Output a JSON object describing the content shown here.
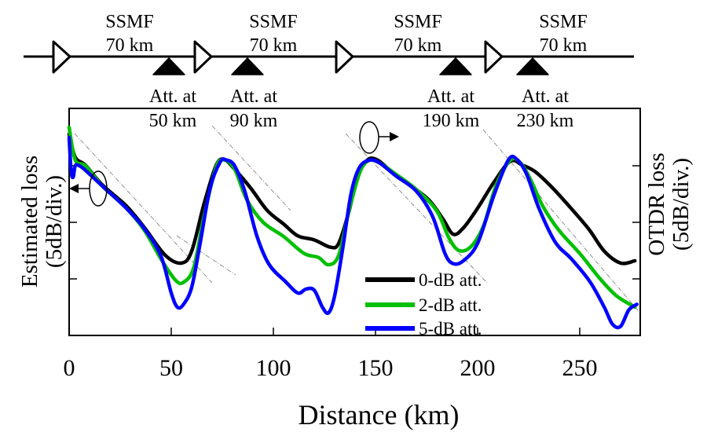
{
  "diagram": {
    "spans": [
      {
        "fiber": "SSMF",
        "length": "70 km"
      },
      {
        "fiber": "SSMF",
        "length": "70 km"
      },
      {
        "fiber": "SSMF",
        "length": "70 km"
      },
      {
        "fiber": "SSMF",
        "length": "70 km"
      }
    ],
    "attenuators": [
      {
        "line1": "Att. at",
        "line2": "50 km"
      },
      {
        "line1": "Att. at",
        "line2": "90 km"
      },
      {
        "line1": "Att. at",
        "line2": "190 km"
      },
      {
        "line1": "Att. at",
        "line2": "230 km"
      }
    ]
  },
  "chart_data": {
    "type": "line",
    "title": "",
    "xlabel": "Distance (km)",
    "ylabel_left": [
      "Estimated loss",
      "(5dB/div.)"
    ],
    "ylabel_right": [
      "OTDR loss",
      "(5dB/div.)"
    ],
    "xlim": [
      0,
      280
    ],
    "ylim": [
      0,
      4
    ],
    "y_unit": "divisions (5 dB/div.)",
    "xticks": [
      0,
      50,
      100,
      150,
      200,
      250
    ],
    "xtick_labels": [
      "0",
      "50",
      "100",
      "150",
      "200",
      "250"
    ],
    "yticks": [
      1,
      2,
      3
    ],
    "grid": false,
    "legend": {
      "placement": "bottom-center",
      "entries": [
        "0-dB att.",
        "2-dB att.",
        "5-dB att."
      ]
    },
    "annotations": {
      "left_axis_arrow": "points to left axis",
      "right_axis_arrow": "points to right axis"
    },
    "series": [
      {
        "name": "0-dB att.",
        "color": "#000000",
        "x": [
          0,
          3,
          8,
          16,
          28,
          37,
          47,
          55,
          60,
          66,
          72,
          76,
          81,
          89,
          97,
          105,
          112,
          120,
          128,
          132,
          137,
          141,
          146,
          151,
          158,
          166,
          176,
          183,
          188,
          193,
          200,
          208,
          216,
          222,
          228,
          235,
          242,
          254,
          262,
          270,
          277
        ],
        "y": [
          3.56,
          3.15,
          3.01,
          2.67,
          2.29,
          1.9,
          1.42,
          1.28,
          1.49,
          2.32,
          3.01,
          3.11,
          2.94,
          2.6,
          2.21,
          1.97,
          1.76,
          1.69,
          1.56,
          1.63,
          2.19,
          2.78,
          3.1,
          3.1,
          2.89,
          2.68,
          2.4,
          2.06,
          1.79,
          1.9,
          2.25,
          2.71,
          3.08,
          3.01,
          2.9,
          2.67,
          2.4,
          1.9,
          1.49,
          1.28,
          1.32
        ]
      },
      {
        "name": "2-dB att.",
        "color": "#00c000",
        "x": [
          0,
          3,
          8,
          16,
          28,
          37,
          45,
          52,
          56,
          61,
          66,
          72,
          76,
          81,
          87,
          95,
          105,
          115,
          122,
          127,
          132,
          137,
          142,
          146,
          151,
          160,
          170,
          180,
          186,
          191,
          197,
          203,
          209,
          216,
          221,
          226,
          232,
          240,
          250,
          260,
          268,
          277
        ],
        "y": [
          3.68,
          3.1,
          3.0,
          2.65,
          2.25,
          1.85,
          1.35,
          0.98,
          0.94,
          1.2,
          2.1,
          2.98,
          3.1,
          2.94,
          2.4,
          2.0,
          1.75,
          1.45,
          1.38,
          1.25,
          1.42,
          2.2,
          2.85,
          3.08,
          3.07,
          2.85,
          2.58,
          2.2,
          1.72,
          1.5,
          1.58,
          1.95,
          2.65,
          3.1,
          3.05,
          2.75,
          2.28,
          1.85,
          1.45,
          1.0,
          0.7,
          0.5
        ]
      },
      {
        "name": "5-dB att.",
        "color": "#0000ff",
        "x": [
          0,
          1,
          2,
          3,
          5,
          8,
          16,
          28,
          37,
          45,
          50,
          53,
          56,
          60,
          64,
          69,
          74,
          77,
          81,
          86,
          92,
          98,
          106,
          112,
          116,
          120,
          124,
          127,
          130,
          134,
          138,
          142,
          147,
          152,
          160,
          170,
          178,
          184,
          188,
          193,
          200,
          208,
          215,
          219,
          224,
          230,
          238,
          246,
          255,
          262,
          266,
          270,
          274,
          278
        ],
        "y": [
          3.5,
          2.9,
          2.8,
          3.0,
          3.0,
          2.92,
          2.65,
          2.25,
          1.88,
          1.4,
          0.75,
          0.5,
          0.55,
          0.85,
          1.6,
          2.6,
          3.07,
          3.1,
          3.0,
          2.55,
          1.75,
          1.25,
          0.95,
          0.75,
          0.82,
          0.8,
          0.5,
          0.4,
          0.7,
          1.55,
          2.5,
          2.96,
          3.1,
          3.05,
          2.82,
          2.55,
          2.1,
          1.45,
          1.27,
          1.32,
          1.63,
          2.48,
          3.1,
          3.12,
          2.85,
          2.25,
          1.65,
          1.35,
          0.95,
          0.5,
          0.2,
          0.16,
          0.45,
          0.55
        ]
      }
    ],
    "guide_lines": "dash-dot diagonal reference lines indicating span slopes"
  }
}
